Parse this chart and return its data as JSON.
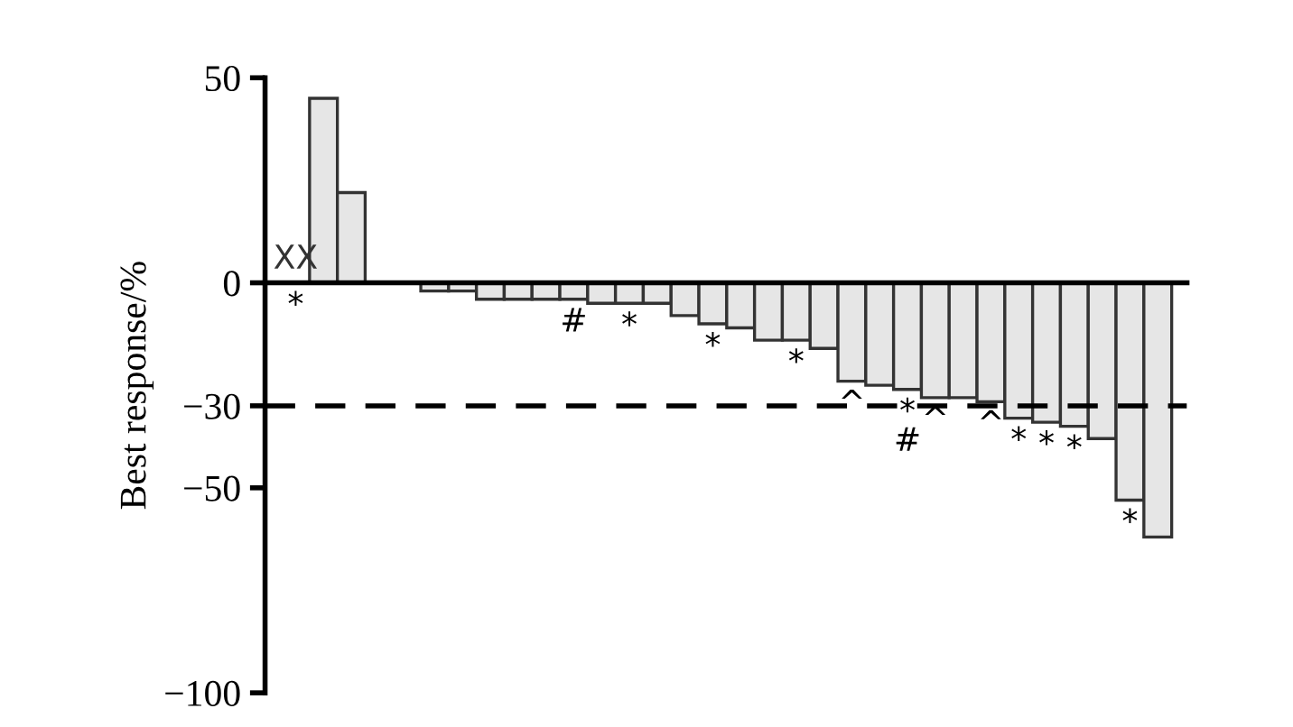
{
  "chart_data": {
    "type": "bar",
    "ylabel": "Best response/%",
    "categories": [
      null,
      null,
      null,
      null,
      null,
      null,
      null,
      null,
      null,
      null,
      null,
      null,
      null,
      null,
      null,
      null,
      null,
      null,
      null,
      null,
      null,
      null,
      null,
      null,
      null,
      null,
      null,
      null,
      null,
      null,
      null,
      null
    ],
    "values": [
      0,
      45,
      22,
      0,
      0,
      -2,
      -2,
      -4,
      -4,
      -4,
      -4,
      -5,
      -5,
      -5,
      -8,
      -10,
      -11,
      -14,
      -14,
      -16,
      -24,
      -25,
      -26,
      -28,
      -28,
      -29,
      -33,
      -34,
      -35,
      -38,
      -53,
      -62
    ],
    "value_labels": [
      "XX\n*",
      null,
      null,
      null,
      null,
      null,
      null,
      null,
      null,
      null,
      "#",
      null,
      "*",
      null,
      null,
      "*",
      null,
      null,
      "*",
      null,
      "^",
      null,
      "*\n#",
      "^",
      null,
      "^",
      "*",
      "*",
      "*",
      null,
      "*",
      null
    ],
    "color": "#e6e6e6",
    "ylim": [
      -100,
      50
    ],
    "yticks": [
      50,
      0,
      {
        "value": -30,
        "label": "−30"
      },
      {
        "value": -50,
        "label": "−50"
      },
      {
        "value": -100,
        "label": "−100"
      }
    ],
    "ref_lines": [
      {
        "axis": "y",
        "value": -30,
        "line_style": "dashed",
        "color": "#000000"
      }
    ],
    "grid": false,
    "legend": false
  }
}
